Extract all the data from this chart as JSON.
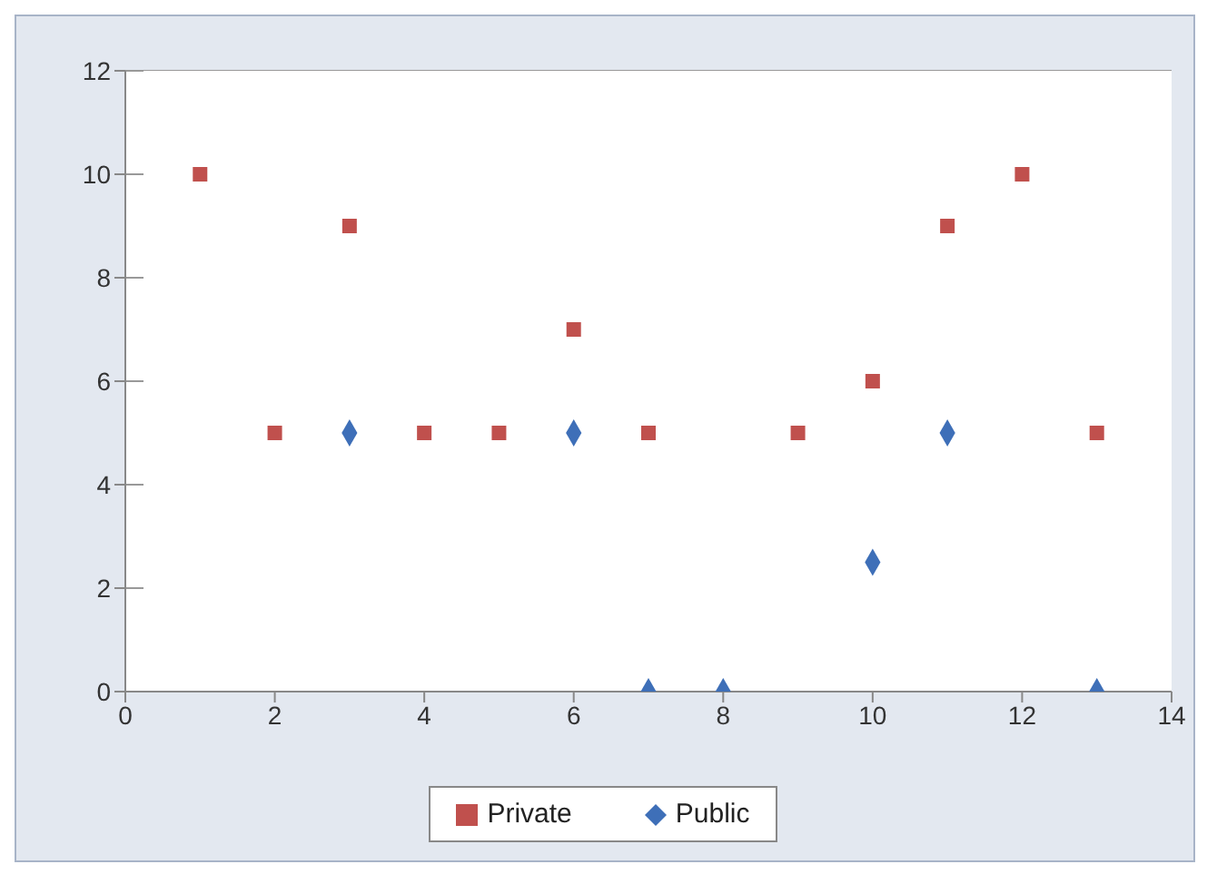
{
  "chart_data": {
    "type": "scatter",
    "xlim": [
      0,
      14
    ],
    "xticks": [
      0,
      2,
      4,
      6,
      8,
      10,
      12,
      14
    ],
    "ylim": [
      0,
      12
    ],
    "yticks": [
      0,
      2,
      4,
      6,
      8,
      10,
      12
    ],
    "grid": "y",
    "legend": "bottom",
    "series": [
      {
        "name": "Public",
        "color": "#3e6fb8",
        "marker": "diamond",
        "x": [
          3,
          6,
          7,
          8,
          10,
          11,
          13
        ],
        "values": [
          5,
          5,
          0,
          0,
          2.5,
          5,
          0
        ]
      },
      {
        "name": "Private",
        "color": "#c0504d",
        "marker": "square",
        "x": [
          1,
          2,
          3,
          4,
          5,
          6,
          7,
          9,
          10,
          11,
          12,
          13
        ],
        "values": [
          10,
          5,
          9,
          5,
          5,
          7,
          5,
          5,
          6,
          9,
          10,
          5
        ]
      }
    ]
  }
}
